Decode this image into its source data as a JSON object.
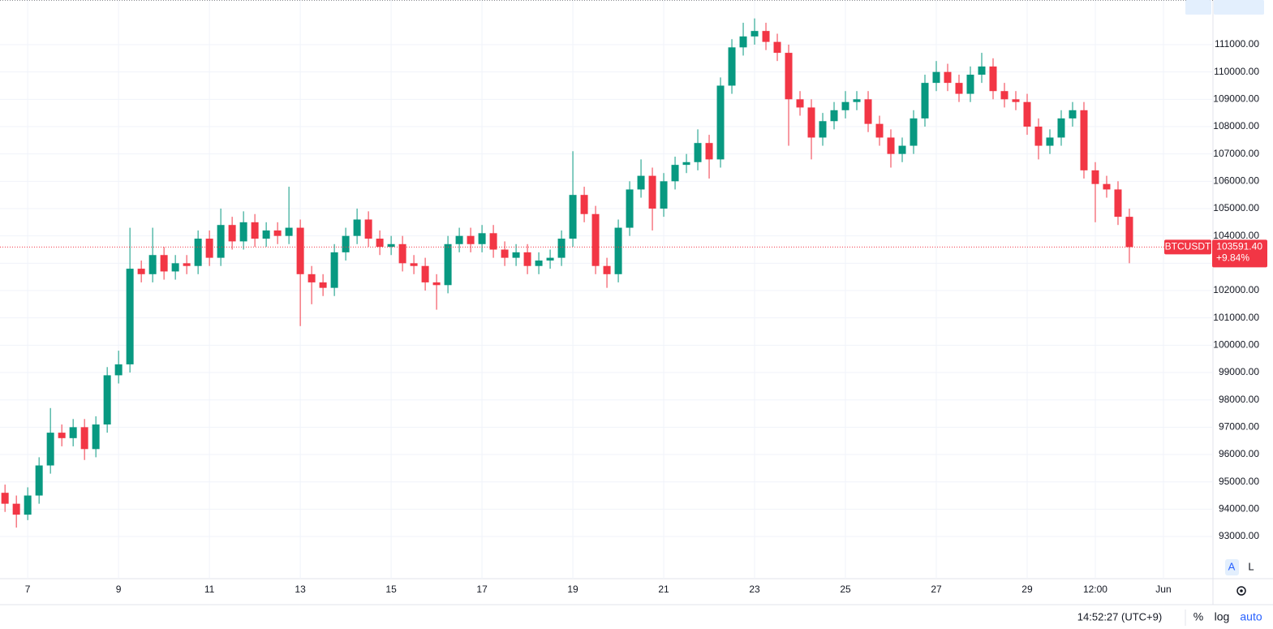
{
  "chart_data": {
    "type": "candlestick",
    "symbol": "BTCUSDT",
    "up_color": "#089981",
    "down_color": "#f23645",
    "grid": true,
    "xlim": [
      6.39,
      33.09
    ],
    "ylim": [
      91457,
      112633
    ],
    "xticks": [
      7,
      9,
      11,
      13,
      15,
      17,
      19,
      21,
      23,
      25,
      27,
      29,
      {
        "value": 30.5,
        "label": "12:00"
      },
      {
        "value": 32,
        "label": "Jun"
      }
    ],
    "yticks": [
      {
        "value": 93000,
        "label": "93000.00"
      },
      {
        "value": 94000,
        "label": "94000.00"
      },
      {
        "value": 95000,
        "label": "95000.00"
      },
      {
        "value": 96000,
        "label": "96000.00"
      },
      {
        "value": 97000,
        "label": "97000.00"
      },
      {
        "value": 98000,
        "label": "98000.00"
      },
      {
        "value": 99000,
        "label": "99000.00"
      },
      {
        "value": 100000,
        "label": "100000.00"
      },
      {
        "value": 101000,
        "label": "101000.00"
      },
      {
        "value": 102000,
        "label": "102000.00"
      },
      {
        "value": 103000,
        "label": "103000.00"
      },
      {
        "value": 104000,
        "label": "104000.00"
      },
      {
        "value": 105000,
        "label": "105000.00"
      },
      {
        "value": 106000,
        "label": "106000.00"
      },
      {
        "value": 107000,
        "label": "107000.00"
      },
      {
        "value": 108000,
        "label": "108000.00"
      },
      {
        "value": 109000,
        "label": "109000.00"
      },
      {
        "value": 110000,
        "label": "110000.00"
      },
      {
        "value": 111000,
        "label": "111000.00"
      }
    ],
    "high": [
      94900,
      94500,
      94800,
      95900,
      97700,
      97100,
      97300,
      97300,
      97400,
      99200,
      99800,
      104300,
      103100,
      104300,
      103600,
      103300,
      103300,
      104200,
      104200,
      105000,
      104700,
      104900,
      104800,
      104500,
      104500,
      105800,
      104600,
      102900,
      102600,
      103700,
      104300,
      105000,
      104900,
      104200,
      104000,
      104000,
      103300,
      103200,
      102600,
      104000,
      104300,
      104300,
      104400,
      104400,
      103800,
      103700,
      103700,
      103400,
      103500,
      104200,
      107100,
      105800,
      105100,
      103200,
      104600,
      106000,
      106800,
      106500,
      106300,
      106900,
      107000,
      107900,
      107700,
      109800,
      111200,
      111800,
      111959.5,
      111800,
      111400,
      111000,
      109300,
      109000,
      108500,
      108900,
      109300,
      109300,
      109300,
      108400,
      107900,
      107600,
      108600,
      109900,
      110400,
      110300,
      109900,
      110200,
      110700,
      110500,
      109600,
      109300,
      109200,
      108300,
      107900,
      108600,
      108900,
      108900,
      106700,
      106200,
      106000,
      105000
    ],
    "low": [
      93900,
      93327,
      93600,
      94200,
      95300,
      96300,
      96300,
      95800,
      95900,
      96800,
      98600,
      99000,
      102300,
      102300,
      102400,
      102400,
      102600,
      102600,
      102900,
      102900,
      103500,
      103500,
      103600,
      103600,
      103700,
      103700,
      100700,
      101500,
      101800,
      101800,
      103100,
      103700,
      103600,
      103300,
      103300,
      102700,
      102600,
      102000,
      101300,
      101900,
      103400,
      103400,
      103400,
      103200,
      102900,
      102900,
      102600,
      102600,
      102800,
      102900,
      103600,
      104500,
      102600,
      102100,
      102300,
      104000,
      105400,
      104200,
      104700,
      105700,
      106300,
      106400,
      106100,
      106500,
      109200,
      110600,
      111000,
      110800,
      110400,
      107300,
      108400,
      106800,
      107300,
      107900,
      108300,
      108600,
      107800,
      107300,
      106500,
      106700,
      107000,
      108000,
      109300,
      109300,
      108900,
      108900,
      109600,
      109000,
      108700,
      108600,
      107700,
      106800,
      107000,
      107300,
      108000,
      106100,
      104500,
      105400,
      104400,
      103000
    ],
    "last": {
      "value": 103591.4,
      "label": "103591.40",
      "change": "+9.84%"
    },
    "x": [
      6.5,
      6.75,
      7,
      7.25,
      7.5,
      7.75,
      8,
      8.25,
      8.5,
      8.75,
      9,
      9.25,
      9.5,
      9.75,
      10,
      10.25,
      10.5,
      10.75,
      11,
      11.25,
      11.5,
      11.75,
      12,
      12.25,
      12.5,
      12.75,
      13,
      13.25,
      13.5,
      13.75,
      14,
      14.25,
      14.5,
      14.75,
      15,
      15.25,
      15.5,
      15.75,
      16,
      16.25,
      16.5,
      16.75,
      17,
      17.25,
      17.5,
      17.75,
      18,
      18.25,
      18.5,
      18.75,
      19,
      19.25,
      19.5,
      19.75,
      20,
      20.25,
      20.5,
      20.75,
      21,
      21.25,
      21.5,
      21.75,
      22,
      22.25,
      22.5,
      22.75,
      23,
      23.25,
      23.5,
      23.75,
      24,
      24.25,
      24.5,
      24.75,
      25,
      25.25,
      25.5,
      25.75,
      26,
      26.25,
      26.5,
      26.75,
      27,
      27.25,
      27.5,
      27.75,
      28,
      28.25,
      28.5,
      28.75,
      29,
      29.25,
      29.5,
      29.75,
      30,
      30.25,
      30.5,
      30.75,
      31,
      31.25
    ],
    "open": [
      94600,
      94200,
      93800,
      94500,
      95600,
      96800,
      96600,
      97000,
      96200,
      97100,
      98900,
      99300,
      102800,
      102600,
      103300,
      102700,
      103000,
      102900,
      103900,
      103200,
      104400,
      103800,
      104500,
      103900,
      104200,
      104000,
      104300,
      102600,
      102300,
      102100,
      103400,
      104000,
      104600,
      103900,
      103600,
      103700,
      103000,
      102900,
      102300,
      102200,
      103700,
      104000,
      103700,
      104100,
      103500,
      103200,
      103400,
      102900,
      103100,
      103200,
      103900,
      105500,
      104800,
      102900,
      102600,
      104300,
      105700,
      106200,
      105000,
      106000,
      106600,
      106700,
      107400,
      106800,
      109500,
      110900,
      111300,
      111500,
      111100,
      110700,
      109000,
      108700,
      107600,
      108200,
      108600,
      108900,
      109000,
      108100,
      107600,
      107000,
      107300,
      108300,
      109600,
      110000,
      109600,
      109200,
      109900,
      110200,
      109300,
      109000,
      108900,
      108000,
      107300,
      107600,
      108300,
      108600,
      106400,
      105900,
      105700,
      104700
    ],
    "close": [
      94200,
      93800,
      94500,
      95600,
      96800,
      96600,
      97000,
      96200,
      97100,
      98900,
      99300,
      102800,
      102600,
      103300,
      102700,
      103000,
      102900,
      103900,
      103200,
      104400,
      103800,
      104500,
      103900,
      104200,
      104000,
      104300,
      102600,
      102300,
      102100,
      103400,
      104000,
      104600,
      103900,
      103600,
      103700,
      103000,
      102900,
      102300,
      102200,
      103700,
      104000,
      103700,
      104100,
      103500,
      103200,
      103400,
      102900,
      103100,
      103200,
      103900,
      105500,
      104800,
      102900,
      102600,
      104300,
      105700,
      106200,
      105000,
      106000,
      106600,
      106700,
      107400,
      106800,
      109500,
      110900,
      111300,
      111500,
      111100,
      110700,
      109000,
      108700,
      107600,
      108200,
      108600,
      108900,
      109000,
      108100,
      107600,
      107000,
      107300,
      108300,
      109600,
      110000,
      109600,
      109200,
      109900,
      110200,
      109300,
      109000,
      108900,
      108000,
      107300,
      107600,
      108300,
      108600,
      106400,
      105900,
      105700,
      104700,
      103591.4
    ]
  },
  "status_bar": {
    "clock": "14:52:27 (UTC+9)",
    "percent": "%",
    "log": "log",
    "auto": "auto"
  },
  "scale_buttons": {
    "auto": "A",
    "lock": "L"
  }
}
